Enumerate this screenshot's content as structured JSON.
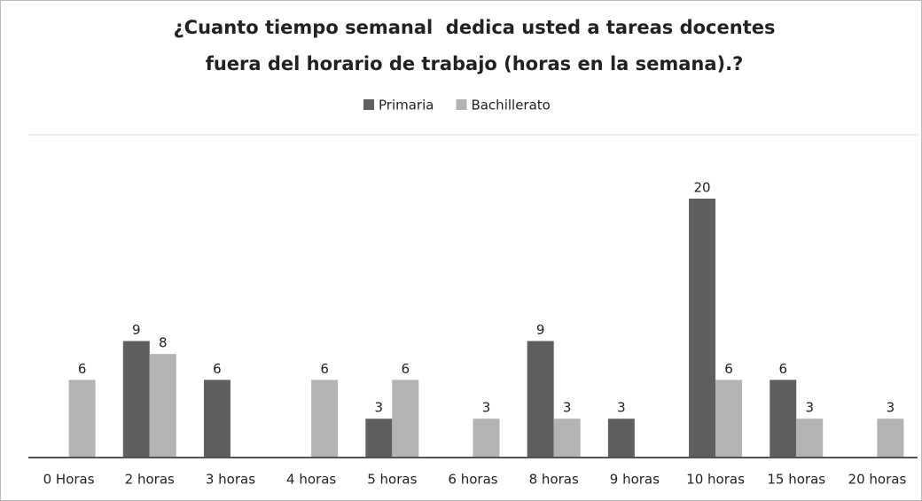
{
  "chart_data": {
    "type": "bar",
    "title": [
      "¿Cuanto tiempo semanal  dedica usted a tareas docentes",
      "fuera del horario de trabajo (horas en la semana).?"
    ],
    "categories": [
      "0 Horas",
      "2 horas",
      "3 horas",
      "4 horas",
      "5 horas",
      "6 horas",
      "8 horas",
      "9 horas",
      "10 horas",
      "15 horas",
      "20 horas"
    ],
    "series": [
      {
        "name": "Primaria",
        "color": "#5f5f5f",
        "values": [
          null,
          9,
          6,
          null,
          3,
          null,
          9,
          3,
          20,
          6,
          null
        ]
      },
      {
        "name": "Bachillerato",
        "color": "#b3b3b3",
        "values": [
          6,
          8,
          null,
          6,
          6,
          3,
          3,
          null,
          6,
          3,
          3
        ]
      }
    ],
    "legend": "top"
  }
}
